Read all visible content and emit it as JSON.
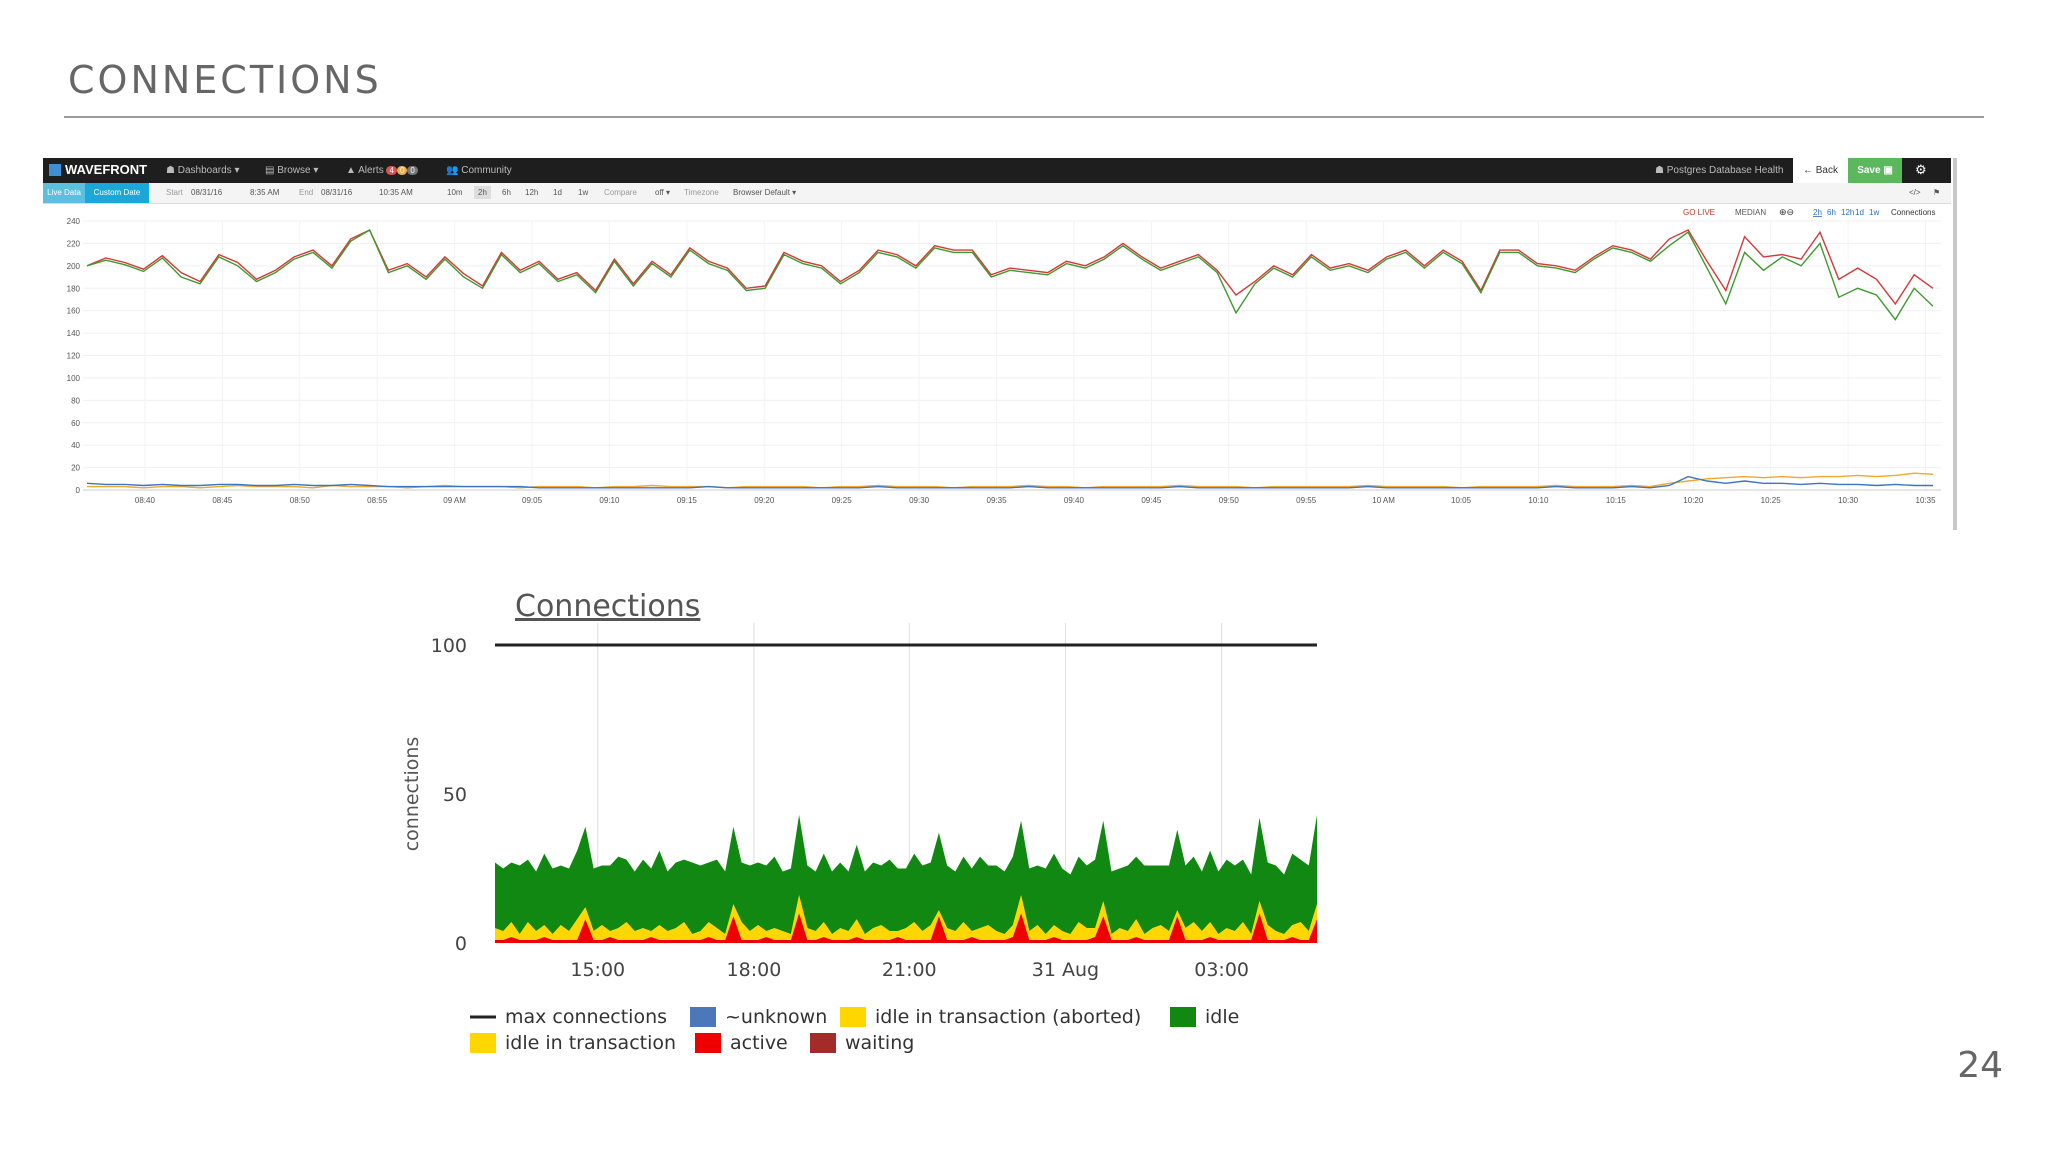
{
  "slide": {
    "title": "CONNECTIONS",
    "page_number": "24"
  },
  "wavefront": {
    "brand": "WAVEFRONT",
    "nav": [
      "Dashboards ▾",
      "Browse ▾",
      "Alerts",
      "Community"
    ],
    "alerts_badges": [
      "4",
      "0",
      "0"
    ],
    "dashboard_name": "Postgres Database Health",
    "back_label": "Back",
    "save_label": "Save",
    "live_data_label": "Live Data",
    "custom_date_label": "Custom Date",
    "start_label": "Start",
    "start_date": "08/31/16",
    "start_time": "8:35 AM",
    "end_label": "End",
    "end_date": "08/31/16",
    "end_time": "10:35 AM",
    "ranges": [
      "10m",
      "2h",
      "6h",
      "12h",
      "1d",
      "1w"
    ],
    "compare_label": "Compare",
    "compare_value": "off ▾",
    "timezone_label": "Timezone",
    "timezone_value": "Browser Default ▾",
    "go_live": "GO LIVE",
    "median_label": "MEDIAN",
    "chart_ranges": [
      "2h",
      "6h",
      "12h",
      "1d",
      "1w"
    ],
    "chart_label": "Connections",
    "colors": {
      "topbar": "#1e1e1e",
      "accent": "#1aa7d9",
      "save": "#5cb85c",
      "series_red": "#d43a3a",
      "series_green": "#3e9a2f",
      "series_orange": "#f0a830",
      "series_blue": "#3d74c4"
    }
  },
  "chart_data": [
    {
      "type": "line",
      "title": "",
      "xlabel": "",
      "ylabel": "",
      "ylim": [
        0,
        240
      ],
      "yticks": [
        0,
        20,
        40,
        60,
        80,
        100,
        120,
        140,
        160,
        180,
        200,
        220,
        240
      ],
      "xticks": [
        "08:40",
        "08:45",
        "08:50",
        "08:55",
        "09 AM",
        "09:05",
        "09:10",
        "09:15",
        "09:20",
        "09:25",
        "09:30",
        "09:35",
        "09:40",
        "09:45",
        "09:50",
        "09:55",
        "10 AM",
        "10:05",
        "10:10",
        "10:15",
        "10:20",
        "10:25",
        "10:30",
        "10:35"
      ],
      "x_range": [
        "08:36",
        "10:36"
      ],
      "grid": true,
      "legend": "none",
      "series": [
        {
          "color": "#d43a3a",
          "values": [
            200,
            207,
            203,
            197,
            209,
            194,
            186,
            210,
            203,
            188,
            196,
            208,
            214,
            200,
            224,
            232,
            196,
            202,
            190,
            208,
            193,
            182,
            212,
            196,
            204,
            188,
            194,
            178,
            206,
            184,
            204,
            192,
            216,
            204,
            198,
            180,
            182,
            212,
            204,
            200,
            186,
            196,
            214,
            210,
            200,
            218,
            214,
            214,
            192,
            198,
            196,
            194,
            204,
            200,
            208,
            220,
            208,
            198,
            204,
            210,
            196,
            174,
            186,
            200,
            192,
            210,
            198,
            202,
            196,
            208,
            214,
            200,
            214,
            204,
            178,
            214,
            214,
            202,
            200,
            196,
            208,
            218,
            214,
            206,
            224,
            232,
            204,
            178,
            226,
            208,
            210,
            206,
            230,
            188,
            198,
            188,
            166,
            192,
            180
          ]
        },
        {
          "color": "#3e9a2f",
          "values": [
            200,
            205,
            201,
            195,
            207,
            190,
            184,
            208,
            200,
            186,
            194,
            206,
            212,
            198,
            222,
            232,
            194,
            200,
            188,
            206,
            190,
            180,
            210,
            194,
            202,
            186,
            192,
            176,
            204,
            182,
            202,
            190,
            214,
            202,
            196,
            178,
            180,
            210,
            202,
            198,
            184,
            194,
            212,
            208,
            198,
            216,
            212,
            212,
            190,
            196,
            194,
            192,
            202,
            198,
            206,
            218,
            206,
            196,
            202,
            208,
            194,
            158,
            184,
            198,
            190,
            208,
            196,
            200,
            194,
            206,
            212,
            198,
            212,
            202,
            176,
            212,
            212,
            200,
            198,
            194,
            206,
            216,
            212,
            204,
            218,
            230,
            198,
            166,
            212,
            196,
            208,
            200,
            220,
            172,
            180,
            174,
            152,
            180,
            164
          ]
        },
        {
          "color": "#f0a830",
          "values": [
            3,
            3,
            3,
            2,
            3,
            3,
            2,
            3,
            4,
            3,
            3,
            3,
            2,
            4,
            3,
            3,
            3,
            2,
            3,
            4,
            3,
            3,
            3,
            2,
            3,
            3,
            3,
            2,
            3,
            3,
            4,
            3,
            3,
            3,
            2,
            3,
            3,
            3,
            3,
            2,
            3,
            3,
            4,
            3,
            3,
            3,
            2,
            3,
            3,
            3,
            4,
            3,
            3,
            2,
            3,
            3,
            3,
            3,
            4,
            3,
            3,
            3,
            2,
            3,
            3,
            3,
            3,
            3,
            4,
            3,
            3,
            3,
            3,
            2,
            3,
            3,
            3,
            3,
            4,
            3,
            3,
            3,
            4,
            3,
            6,
            8,
            10,
            11,
            12,
            11,
            12,
            11,
            12,
            12,
            13,
            12,
            13,
            15,
            14
          ]
        },
        {
          "color": "#3d74c4",
          "values": [
            6,
            5,
            5,
            4,
            5,
            4,
            4,
            5,
            5,
            4,
            4,
            5,
            4,
            4,
            5,
            4,
            3,
            3,
            3,
            3,
            3,
            3,
            3,
            3,
            2,
            2,
            2,
            2,
            2,
            2,
            2,
            2,
            2,
            3,
            2,
            2,
            2,
            2,
            2,
            2,
            2,
            2,
            3,
            2,
            2,
            2,
            2,
            2,
            2,
            2,
            3,
            2,
            2,
            2,
            2,
            2,
            2,
            2,
            3,
            2,
            2,
            2,
            2,
            2,
            2,
            2,
            2,
            2,
            3,
            2,
            2,
            2,
            2,
            2,
            2,
            2,
            2,
            2,
            3,
            2,
            2,
            2,
            3,
            2,
            4,
            12,
            8,
            6,
            8,
            6,
            6,
            5,
            6,
            5,
            5,
            4,
            5,
            4,
            4
          ]
        }
      ]
    },
    {
      "type": "area",
      "title": "Connections",
      "xlabel": "",
      "ylabel": "connections",
      "ylim": [
        0,
        100
      ],
      "yticks": [
        0,
        50,
        100
      ],
      "xticks": [
        "15:00",
        "18:00",
        "21:00",
        "31 Aug",
        "03:00"
      ],
      "grid": true,
      "legend": "bottom",
      "max_connections": 100,
      "series": [
        {
          "name": "max connections",
          "color": "#222222",
          "kind": "line"
        },
        {
          "name": "~unknown",
          "color": "#4a78b8"
        },
        {
          "name": "idle in transaction (aborted)",
          "color": "#ffd700"
        },
        {
          "name": "idle",
          "color": "#118811",
          "values": [
            22,
            21,
            20,
            23,
            21,
            20,
            24,
            22,
            20,
            21,
            23,
            27,
            21,
            20,
            22,
            24,
            21,
            20,
            23,
            21,
            25,
            20,
            22,
            21,
            24,
            22,
            20,
            23,
            21,
            26,
            20,
            22,
            21,
            22,
            24,
            20,
            22,
            27,
            21,
            20,
            23,
            21,
            22,
            20,
            25,
            21,
            22,
            20,
            24,
            21,
            20,
            23,
            22,
            21,
            26,
            21,
            20,
            22,
            21,
            24,
            20,
            22,
            21,
            23,
            25,
            21,
            20,
            22,
            24,
            21,
            20,
            22,
            21,
            23,
            27,
            21,
            20,
            22,
            21,
            23,
            21,
            20,
            22,
            27,
            21,
            22,
            20,
            24,
            21,
            23,
            22,
            21,
            20,
            28,
            21,
            22,
            20,
            24,
            21,
            22,
            30
          ]
        },
        {
          "name": "idle in transaction",
          "color": "#ffd700",
          "values": [
            4,
            3,
            5,
            2,
            6,
            3,
            4,
            2,
            5,
            3,
            7,
            4,
            3,
            5,
            2,
            4,
            6,
            3,
            4,
            2,
            5,
            3,
            4,
            6,
            2,
            3,
            5,
            4,
            2,
            4,
            6,
            3,
            5,
            2,
            4,
            3,
            2,
            6,
            4,
            3,
            5,
            2,
            4,
            3,
            6,
            2,
            4,
            5,
            3,
            2,
            4,
            6,
            3,
            5,
            2,
            4,
            3,
            6,
            2,
            4,
            5,
            3,
            2,
            4,
            6,
            3,
            5,
            2,
            4,
            3,
            2,
            6,
            4,
            3,
            5,
            2,
            4,
            3,
            6,
            2,
            4,
            5,
            3,
            2,
            4,
            6,
            3,
            5,
            2,
            4,
            3,
            6,
            2,
            4,
            5,
            3,
            2,
            4,
            6,
            3,
            5
          ]
        },
        {
          "name": "active",
          "color": "#ee0000",
          "values": [
            1,
            1,
            2,
            1,
            1,
            1,
            2,
            1,
            1,
            1,
            1,
            8,
            1,
            1,
            2,
            1,
            1,
            1,
            1,
            2,
            1,
            1,
            1,
            1,
            1,
            1,
            2,
            1,
            1,
            9,
            1,
            1,
            1,
            2,
            1,
            1,
            1,
            10,
            1,
            1,
            2,
            1,
            1,
            1,
            2,
            1,
            1,
            1,
            1,
            2,
            1,
            1,
            1,
            1,
            9,
            1,
            1,
            1,
            2,
            1,
            1,
            1,
            1,
            2,
            10,
            1,
            1,
            1,
            2,
            1,
            1,
            1,
            1,
            2,
            9,
            1,
            1,
            1,
            2,
            1,
            1,
            1,
            1,
            9,
            1,
            1,
            1,
            2,
            1,
            1,
            1,
            1,
            1,
            10,
            1,
            1,
            1,
            2,
            1,
            1,
            8
          ]
        },
        {
          "name": "waiting",
          "color": "#a52a2a"
        }
      ]
    }
  ]
}
